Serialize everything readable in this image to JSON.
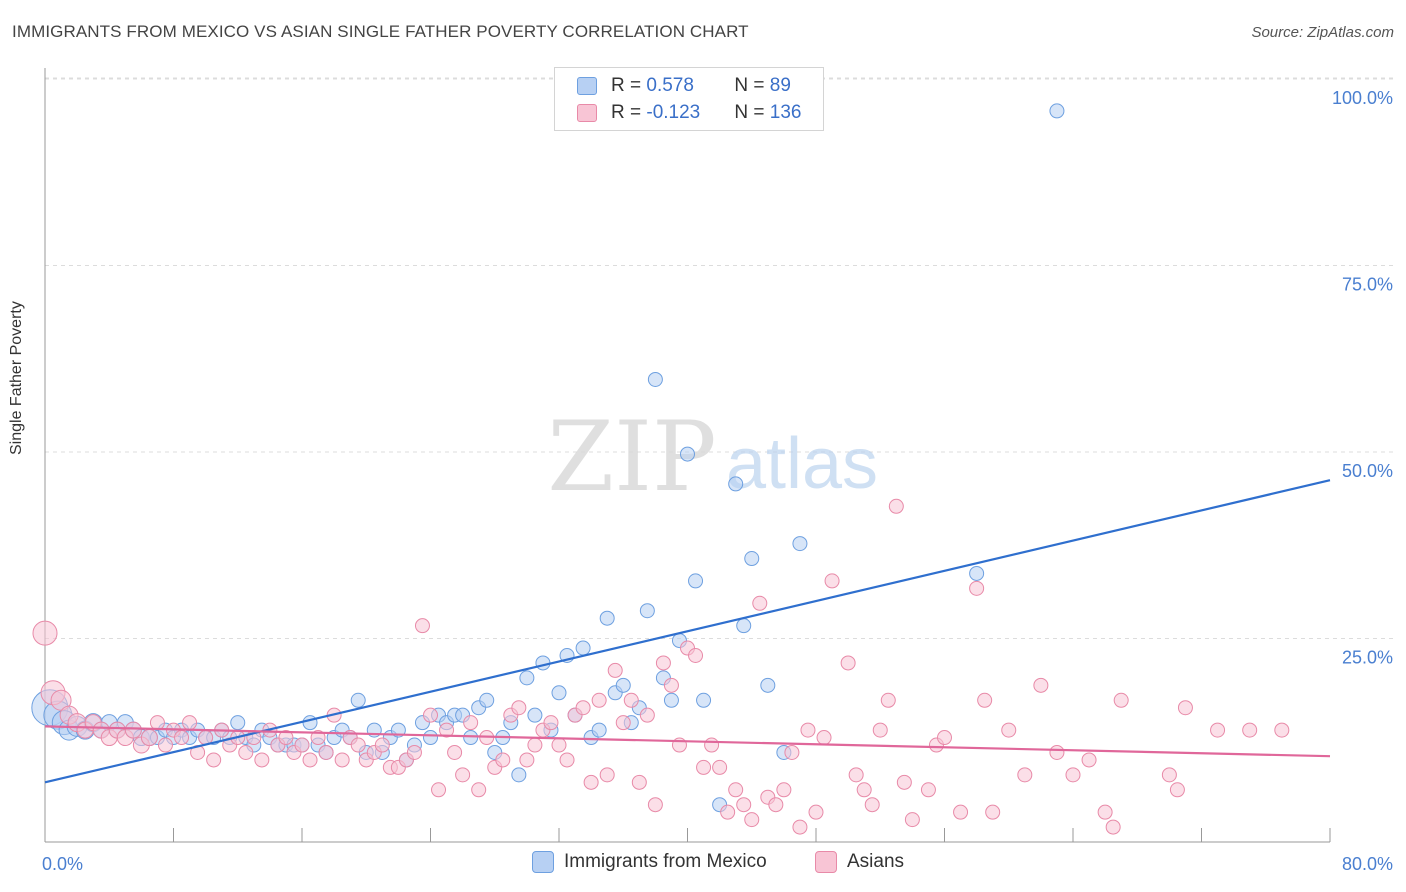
{
  "title": "IMMIGRANTS FROM MEXICO VS ASIAN SINGLE FATHER POVERTY CORRELATION CHART",
  "source": "Source: ZipAtlas.com",
  "watermark": {
    "zip": "ZIP",
    "atlas": "atlas"
  },
  "legend": {
    "rows": [
      {
        "r_label": "R = ",
        "r_value": "0.578",
        "n_label": "N = ",
        "n_value": "89",
        "color": "#a8c8f0"
      },
      {
        "r_label": "R = ",
        "r_value": "-0.123",
        "n_label": "N = ",
        "n_value": "136",
        "color": "#f5b8cc"
      }
    ]
  },
  "chart_data": {
    "type": "scatter",
    "xlabel": "",
    "ylabel": "Single Father Poverty",
    "xlim": [
      0,
      80
    ],
    "ylim": [
      0,
      100
    ],
    "x_tick_labels": [
      "0.0%",
      "80.0%"
    ],
    "y_tick_labels": [
      "25.0%",
      "50.0%",
      "75.0%",
      "100.0%"
    ],
    "y_ticks": [
      25,
      50,
      75,
      100
    ],
    "grid": "horizontal dashed",
    "legend_position": "bottom",
    "series": [
      {
        "name": "Immigrants from Mexico",
        "color": "#6ea0e0",
        "fill": "#b7d0f3",
        "trend": {
          "x": [
            0,
            80
          ],
          "y": [
            8,
            48.5
          ],
          "color": "#2f6fce"
        },
        "points": [
          [
            0.3,
            18,
            18
          ],
          [
            0.8,
            17,
            14
          ],
          [
            1.2,
            16,
            12
          ],
          [
            1.5,
            15,
            10
          ],
          [
            2.0,
            15.5,
            10
          ],
          [
            2.5,
            15,
            9
          ],
          [
            3.0,
            16,
            9
          ],
          [
            3.5,
            15,
            8
          ],
          [
            4.0,
            16,
            8
          ],
          [
            4.5,
            15,
            8
          ],
          [
            5.0,
            16,
            8
          ],
          [
            5.5,
            15,
            8
          ],
          [
            6.0,
            14,
            8
          ],
          [
            6.5,
            14,
            8
          ],
          [
            7.0,
            14,
            7
          ],
          [
            7.5,
            15,
            7
          ],
          [
            8.0,
            14,
            7
          ],
          [
            8.5,
            15,
            7
          ],
          [
            9.0,
            14,
            7
          ],
          [
            9.5,
            15,
            7
          ],
          [
            10.0,
            14,
            7
          ],
          [
            10.5,
            14,
            7
          ],
          [
            11,
            15,
            7
          ],
          [
            11.5,
            14,
            7
          ],
          [
            12,
            16,
            7
          ],
          [
            12.5,
            14,
            7
          ],
          [
            13,
            13,
            7
          ],
          [
            13.5,
            15,
            7
          ],
          [
            14,
            14,
            7
          ],
          [
            14.5,
            13,
            7
          ],
          [
            15,
            13,
            7
          ],
          [
            15.5,
            13,
            7
          ],
          [
            16,
            13,
            7
          ],
          [
            16.5,
            16,
            7
          ],
          [
            17,
            13,
            7
          ],
          [
            17.5,
            12,
            7
          ],
          [
            18,
            14,
            7
          ],
          [
            18.5,
            15,
            7
          ],
          [
            19,
            14,
            7
          ],
          [
            19.5,
            19,
            7
          ],
          [
            20,
            12,
            7
          ],
          [
            20.5,
            15,
            7
          ],
          [
            21,
            12,
            7
          ],
          [
            21.5,
            14,
            7
          ],
          [
            22,
            15,
            7
          ],
          [
            22.5,
            11,
            7
          ],
          [
            23,
            13,
            7
          ],
          [
            23.5,
            16,
            7
          ],
          [
            24,
            14,
            7
          ],
          [
            24.5,
            17,
            7
          ],
          [
            25,
            16,
            7
          ],
          [
            25.5,
            17,
            7
          ],
          [
            26,
            17,
            7
          ],
          [
            26.5,
            14,
            7
          ],
          [
            27,
            18,
            7
          ],
          [
            27.5,
            19,
            7
          ],
          [
            28,
            12,
            7
          ],
          [
            28.5,
            14,
            7
          ],
          [
            29,
            16,
            7
          ],
          [
            29.5,
            9,
            7
          ],
          [
            30,
            22,
            7
          ],
          [
            30.5,
            17,
            7
          ],
          [
            31,
            24,
            7
          ],
          [
            31.5,
            15,
            7
          ],
          [
            32,
            20,
            7
          ],
          [
            32.5,
            25,
            7
          ],
          [
            33,
            17,
            7
          ],
          [
            33.5,
            26,
            7
          ],
          [
            34,
            14,
            7
          ],
          [
            34.5,
            15,
            7
          ],
          [
            35,
            30,
            7
          ],
          [
            35.5,
            20,
            7
          ],
          [
            36,
            21,
            7
          ],
          [
            36.5,
            16,
            7
          ],
          [
            37,
            18,
            7
          ],
          [
            37.5,
            31,
            7
          ],
          [
            38,
            62,
            7
          ],
          [
            38.5,
            22,
            7
          ],
          [
            39,
            19,
            7
          ],
          [
            39.5,
            27,
            7
          ],
          [
            40,
            52,
            7
          ],
          [
            40.5,
            35,
            7
          ],
          [
            41,
            19,
            7
          ],
          [
            42,
            5,
            7
          ],
          [
            43,
            48,
            7
          ],
          [
            43.5,
            29,
            7
          ],
          [
            44,
            38,
            7
          ],
          [
            45,
            21,
            7
          ],
          [
            46,
            12,
            7
          ],
          [
            47,
            40,
            7
          ],
          [
            58,
            36,
            7
          ],
          [
            63,
            98,
            7
          ]
        ]
      },
      {
        "name": "Asians",
        "color": "#e88aa8",
        "fill": "#f8c5d5",
        "trend": {
          "x": [
            0,
            80
          ],
          "y": [
            15.5,
            11.5
          ],
          "color": "#e0679a"
        },
        "points": [
          [
            0,
            28,
            12
          ],
          [
            0.5,
            20,
            12
          ],
          [
            1,
            19,
            10
          ],
          [
            1.5,
            17,
            9
          ],
          [
            2,
            16,
            9
          ],
          [
            2.5,
            15,
            8
          ],
          [
            3,
            16,
            8
          ],
          [
            3.5,
            15,
            8
          ],
          [
            4,
            14,
            8
          ],
          [
            4.5,
            15,
            8
          ],
          [
            5,
            14,
            8
          ],
          [
            5.5,
            15,
            8
          ],
          [
            6,
            13,
            8
          ],
          [
            6.5,
            14,
            8
          ],
          [
            7,
            16,
            7
          ],
          [
            7.5,
            13,
            7
          ],
          [
            8,
            15,
            7
          ],
          [
            8.5,
            14,
            7
          ],
          [
            9,
            16,
            7
          ],
          [
            9.5,
            12,
            7
          ],
          [
            10,
            14,
            7
          ],
          [
            10.5,
            11,
            7
          ],
          [
            11,
            15,
            7
          ],
          [
            11.5,
            13,
            7
          ],
          [
            12,
            14,
            7
          ],
          [
            12.5,
            12,
            7
          ],
          [
            13,
            14,
            7
          ],
          [
            13.5,
            11,
            7
          ],
          [
            14,
            15,
            7
          ],
          [
            14.5,
            13,
            7
          ],
          [
            15,
            14,
            7
          ],
          [
            15.5,
            12,
            7
          ],
          [
            16,
            13,
            7
          ],
          [
            16.5,
            11,
            7
          ],
          [
            17,
            14,
            7
          ],
          [
            17.5,
            12,
            7
          ],
          [
            18,
            17,
            7
          ],
          [
            18.5,
            11,
            7
          ],
          [
            19,
            14,
            7
          ],
          [
            19.5,
            13,
            7
          ],
          [
            20,
            11,
            7
          ],
          [
            20.5,
            12,
            7
          ],
          [
            21,
            13,
            7
          ],
          [
            21.5,
            10,
            7
          ],
          [
            22,
            10,
            7
          ],
          [
            22.5,
            11,
            7
          ],
          [
            23,
            12,
            7
          ],
          [
            23.5,
            29,
            7
          ],
          [
            24,
            17,
            7
          ],
          [
            24.5,
            7,
            7
          ],
          [
            25,
            15,
            7
          ],
          [
            25.5,
            12,
            7
          ],
          [
            26,
            9,
            7
          ],
          [
            26.5,
            16,
            7
          ],
          [
            27,
            7,
            7
          ],
          [
            27.5,
            14,
            7
          ],
          [
            28,
            10,
            7
          ],
          [
            28.5,
            11,
            7
          ],
          [
            29,
            17,
            7
          ],
          [
            29.5,
            18,
            7
          ],
          [
            30,
            11,
            7
          ],
          [
            30.5,
            13,
            7
          ],
          [
            31,
            15,
            7
          ],
          [
            31.5,
            16,
            7
          ],
          [
            32,
            13,
            7
          ],
          [
            32.5,
            11,
            7
          ],
          [
            33,
            17,
            7
          ],
          [
            33.5,
            18,
            7
          ],
          [
            34,
            8,
            7
          ],
          [
            34.5,
            19,
            7
          ],
          [
            35,
            9,
            7
          ],
          [
            35.5,
            23,
            7
          ],
          [
            36,
            16,
            7
          ],
          [
            36.5,
            19,
            7
          ],
          [
            37,
            8,
            7
          ],
          [
            37.5,
            17,
            7
          ],
          [
            38,
            5,
            7
          ],
          [
            38.5,
            24,
            7
          ],
          [
            39,
            21,
            7
          ],
          [
            39.5,
            13,
            7
          ],
          [
            40,
            26,
            7
          ],
          [
            40.5,
            25,
            7
          ],
          [
            41,
            10,
            7
          ],
          [
            41.5,
            13,
            7
          ],
          [
            42,
            10,
            7
          ],
          [
            42.5,
            4,
            7
          ],
          [
            43,
            7,
            7
          ],
          [
            43.5,
            5,
            7
          ],
          [
            44,
            3,
            7
          ],
          [
            44.5,
            32,
            7
          ],
          [
            45,
            6,
            7
          ],
          [
            45.5,
            5,
            7
          ],
          [
            46,
            7,
            7
          ],
          [
            46.5,
            12,
            7
          ],
          [
            47,
            2,
            7
          ],
          [
            47.5,
            15,
            7
          ],
          [
            48,
            4,
            7
          ],
          [
            48.5,
            14,
            7
          ],
          [
            49,
            35,
            7
          ],
          [
            50,
            24,
            7
          ],
          [
            50.5,
            9,
            7
          ],
          [
            51,
            7,
            7
          ],
          [
            51.5,
            5,
            7
          ],
          [
            52,
            15,
            7
          ],
          [
            52.5,
            19,
            7
          ],
          [
            53,
            45,
            7
          ],
          [
            53.5,
            8,
            7
          ],
          [
            54,
            3,
            7
          ],
          [
            55,
            7,
            7
          ],
          [
            55.5,
            13,
            7
          ],
          [
            56,
            14,
            7
          ],
          [
            57,
            4,
            7
          ],
          [
            58,
            34,
            7
          ],
          [
            58.5,
            19,
            7
          ],
          [
            59,
            4,
            7
          ],
          [
            60,
            15,
            7
          ],
          [
            61,
            9,
            7
          ],
          [
            62,
            21,
            7
          ],
          [
            63,
            12,
            7
          ],
          [
            64,
            9,
            7
          ],
          [
            65,
            11,
            7
          ],
          [
            66,
            4,
            7
          ],
          [
            66.5,
            2,
            7
          ],
          [
            67,
            19,
            7
          ],
          [
            70,
            9,
            7
          ],
          [
            70.5,
            7,
            7
          ],
          [
            71,
            18,
            7
          ],
          [
            73,
            15,
            7
          ],
          [
            75,
            15,
            7
          ],
          [
            77,
            15,
            7
          ]
        ]
      }
    ]
  }
}
